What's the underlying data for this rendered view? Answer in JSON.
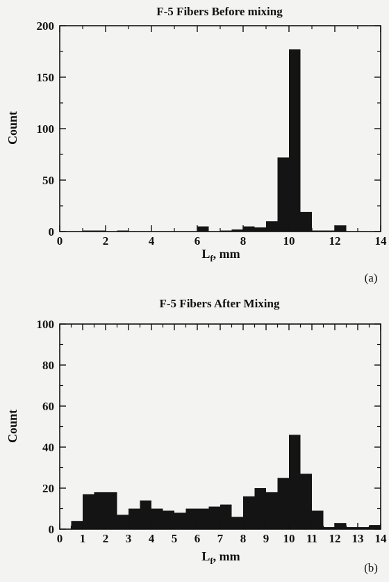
{
  "chart_data": [
    {
      "type": "bar",
      "panel_tag": "(a)",
      "title": "F-5 Fibers Before mixing",
      "xlabel": "mm",
      "xlabel_symbol": "L",
      "xlabel_subscript": "f",
      "ylabel": "Count",
      "xlim": [
        0,
        14
      ],
      "ylim": [
        0,
        200
      ],
      "xticks": [
        0,
        2,
        4,
        6,
        8,
        10,
        12,
        14
      ],
      "yticks": [
        0,
        50,
        100,
        150,
        200
      ],
      "xtick_labels": [
        "0",
        "2",
        "4",
        "6",
        "8",
        "10",
        "12",
        "14"
      ],
      "ytick_labels": [
        "0",
        "50",
        "100",
        "150",
        "200"
      ],
      "bin_width": 0.5,
      "bins": [
        {
          "x": 1.0,
          "count": 1
        },
        {
          "x": 1.5,
          "count": 1
        },
        {
          "x": 2.5,
          "count": 1
        },
        {
          "x": 6.0,
          "count": 5
        },
        {
          "x": 7.0,
          "count": 1
        },
        {
          "x": 7.5,
          "count": 2
        },
        {
          "x": 8.0,
          "count": 5
        },
        {
          "x": 8.5,
          "count": 4
        },
        {
          "x": 9.0,
          "count": 10
        },
        {
          "x": 9.5,
          "count": 72
        },
        {
          "x": 10.0,
          "count": 177
        },
        {
          "x": 10.5,
          "count": 19
        },
        {
          "x": 11.0,
          "count": 1
        },
        {
          "x": 11.5,
          "count": 1
        },
        {
          "x": 12.0,
          "count": 6
        }
      ]
    },
    {
      "type": "bar",
      "panel_tag": "(b)",
      "title": "F-5 Fibers After Mixing",
      "xlabel": "mm",
      "xlabel_symbol": "L",
      "xlabel_subscript": "f",
      "ylabel": "Count",
      "xlim": [
        0,
        14
      ],
      "ylim": [
        0,
        100
      ],
      "xticks": [
        0,
        1,
        2,
        3,
        4,
        5,
        6,
        7,
        8,
        9,
        10,
        11,
        12,
        13,
        14
      ],
      "yticks": [
        0,
        20,
        40,
        60,
        80,
        100
      ],
      "xtick_labels": [
        "0",
        "1",
        "2",
        "3",
        "4",
        "5",
        "6",
        "7",
        "8",
        "9",
        "10",
        "11",
        "12",
        "13",
        "14"
      ],
      "ytick_labels": [
        "0",
        "20",
        "40",
        "60",
        "80",
        "100"
      ],
      "bin_width": 0.5,
      "bins": [
        {
          "x": 0.5,
          "count": 4
        },
        {
          "x": 1.0,
          "count": 17
        },
        {
          "x": 1.5,
          "count": 18
        },
        {
          "x": 2.0,
          "count": 18
        },
        {
          "x": 2.5,
          "count": 7
        },
        {
          "x": 3.0,
          "count": 10
        },
        {
          "x": 3.5,
          "count": 14
        },
        {
          "x": 4.0,
          "count": 10
        },
        {
          "x": 4.5,
          "count": 9
        },
        {
          "x": 5.0,
          "count": 8
        },
        {
          "x": 5.5,
          "count": 10
        },
        {
          "x": 6.0,
          "count": 10
        },
        {
          "x": 6.5,
          "count": 11
        },
        {
          "x": 7.0,
          "count": 12
        },
        {
          "x": 7.5,
          "count": 6
        },
        {
          "x": 8.0,
          "count": 16
        },
        {
          "x": 8.5,
          "count": 20
        },
        {
          "x": 9.0,
          "count": 18
        },
        {
          "x": 9.5,
          "count": 25
        },
        {
          "x": 10.0,
          "count": 46
        },
        {
          "x": 10.5,
          "count": 27
        },
        {
          "x": 11.0,
          "count": 9
        },
        {
          "x": 11.5,
          "count": 1
        },
        {
          "x": 12.0,
          "count": 3
        },
        {
          "x": 12.5,
          "count": 1
        },
        {
          "x": 13.0,
          "count": 1
        },
        {
          "x": 13.5,
          "count": 2
        }
      ]
    }
  ],
  "colors": {
    "background": "#f3f3f1",
    "bar": "#141414",
    "axis": "#111111"
  }
}
